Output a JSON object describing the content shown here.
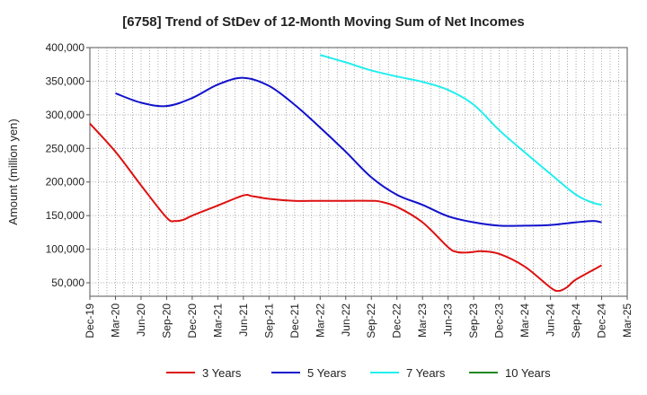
{
  "chart_data": {
    "type": "line",
    "title": "[6758]  Trend of StDev of 12-Month Moving Sum of Net Incomes",
    "xlabel": "",
    "ylabel": "Amount (million yen)",
    "ylim": [
      30000,
      400000
    ],
    "y_ticks": [
      50000,
      100000,
      150000,
      200000,
      250000,
      300000,
      350000,
      400000
    ],
    "y_tick_labels": [
      "50,000",
      "100,000",
      "150,000",
      "200,000",
      "250,000",
      "300,000",
      "350,000",
      "400,000"
    ],
    "x_tick_labels": [
      "Dec-19",
      "Mar-20",
      "Jun-20",
      "Sep-20",
      "Dec-20",
      "Mar-21",
      "Jun-21",
      "Sep-21",
      "Dec-21",
      "Mar-22",
      "Jun-22",
      "Sep-22",
      "Dec-22",
      "Mar-23",
      "Jun-23",
      "Sep-23",
      "Dec-23",
      "Mar-24",
      "Jun-24",
      "Sep-24",
      "Dec-24",
      "Mar-25"
    ],
    "grid": true,
    "legend_position": "bottom",
    "series": [
      {
        "name": "3 Years",
        "color": "#dd1111",
        "points": [
          [
            "Dec-19",
            287000
          ],
          [
            "Mar-20",
            245000
          ],
          [
            "Jun-20",
            195000
          ],
          [
            "Sep-20",
            147000
          ],
          [
            "Oct-20",
            142000
          ],
          [
            "Nov-20",
            144000
          ],
          [
            "Dec-20",
            150000
          ],
          [
            "Mar-21",
            165000
          ],
          [
            "Jun-21",
            180000
          ],
          [
            "Jul-21",
            179000
          ],
          [
            "Sep-21",
            175000
          ],
          [
            "Dec-21",
            172000
          ],
          [
            "Mar-22",
            172000
          ],
          [
            "Jun-22",
            172000
          ],
          [
            "Sep-22",
            172000
          ],
          [
            "Oct-22",
            171000
          ],
          [
            "Dec-22",
            163000
          ],
          [
            "Mar-23",
            140000
          ],
          [
            "Jun-23",
            103000
          ],
          [
            "Jul-23",
            96000
          ],
          [
            "Aug-23",
            95000
          ],
          [
            "Sep-23",
            96000
          ],
          [
            "Oct-23",
            97000
          ],
          [
            "Dec-23",
            93000
          ],
          [
            "Mar-24",
            74000
          ],
          [
            "Jun-24",
            43000
          ],
          [
            "Jul-24",
            38000
          ],
          [
            "Aug-24",
            44000
          ],
          [
            "Sep-24",
            55000
          ],
          [
            "Dec-24",
            76000
          ]
        ]
      },
      {
        "name": "5 Years",
        "color": "#1111cc",
        "points": [
          [
            "Mar-20",
            332000
          ],
          [
            "Jun-20",
            318000
          ],
          [
            "Sep-20",
            313000
          ],
          [
            "Dec-20",
            325000
          ],
          [
            "Mar-21",
            345000
          ],
          [
            "Jun-21",
            355000
          ],
          [
            "Sep-21",
            343000
          ],
          [
            "Dec-21",
            315000
          ],
          [
            "Mar-22",
            281000
          ],
          [
            "Jun-22",
            245000
          ],
          [
            "Sep-22",
            207000
          ],
          [
            "Dec-22",
            181000
          ],
          [
            "Mar-23",
            166000
          ],
          [
            "Jun-23",
            149000
          ],
          [
            "Sep-23",
            140000
          ],
          [
            "Dec-23",
            135000
          ],
          [
            "Mar-24",
            135000
          ],
          [
            "Jun-24",
            136000
          ],
          [
            "Sep-24",
            140000
          ],
          [
            "Nov-24",
            142000
          ],
          [
            "Dec-24",
            140000
          ]
        ]
      },
      {
        "name": "7 Years",
        "color": "#22eeee",
        "points": [
          [
            "Mar-22",
            389000
          ],
          [
            "Jun-22",
            378000
          ],
          [
            "Sep-22",
            366000
          ],
          [
            "Dec-22",
            357000
          ],
          [
            "Mar-23",
            349000
          ],
          [
            "Jun-23",
            337000
          ],
          [
            "Sep-23",
            315000
          ],
          [
            "Dec-23",
            277000
          ],
          [
            "Mar-24",
            244000
          ],
          [
            "Jun-24",
            212000
          ],
          [
            "Sep-24",
            181000
          ],
          [
            "Nov-24",
            169000
          ],
          [
            "Dec-24",
            166000
          ]
        ]
      },
      {
        "name": "10 Years",
        "color": "#228822",
        "points": []
      }
    ]
  }
}
